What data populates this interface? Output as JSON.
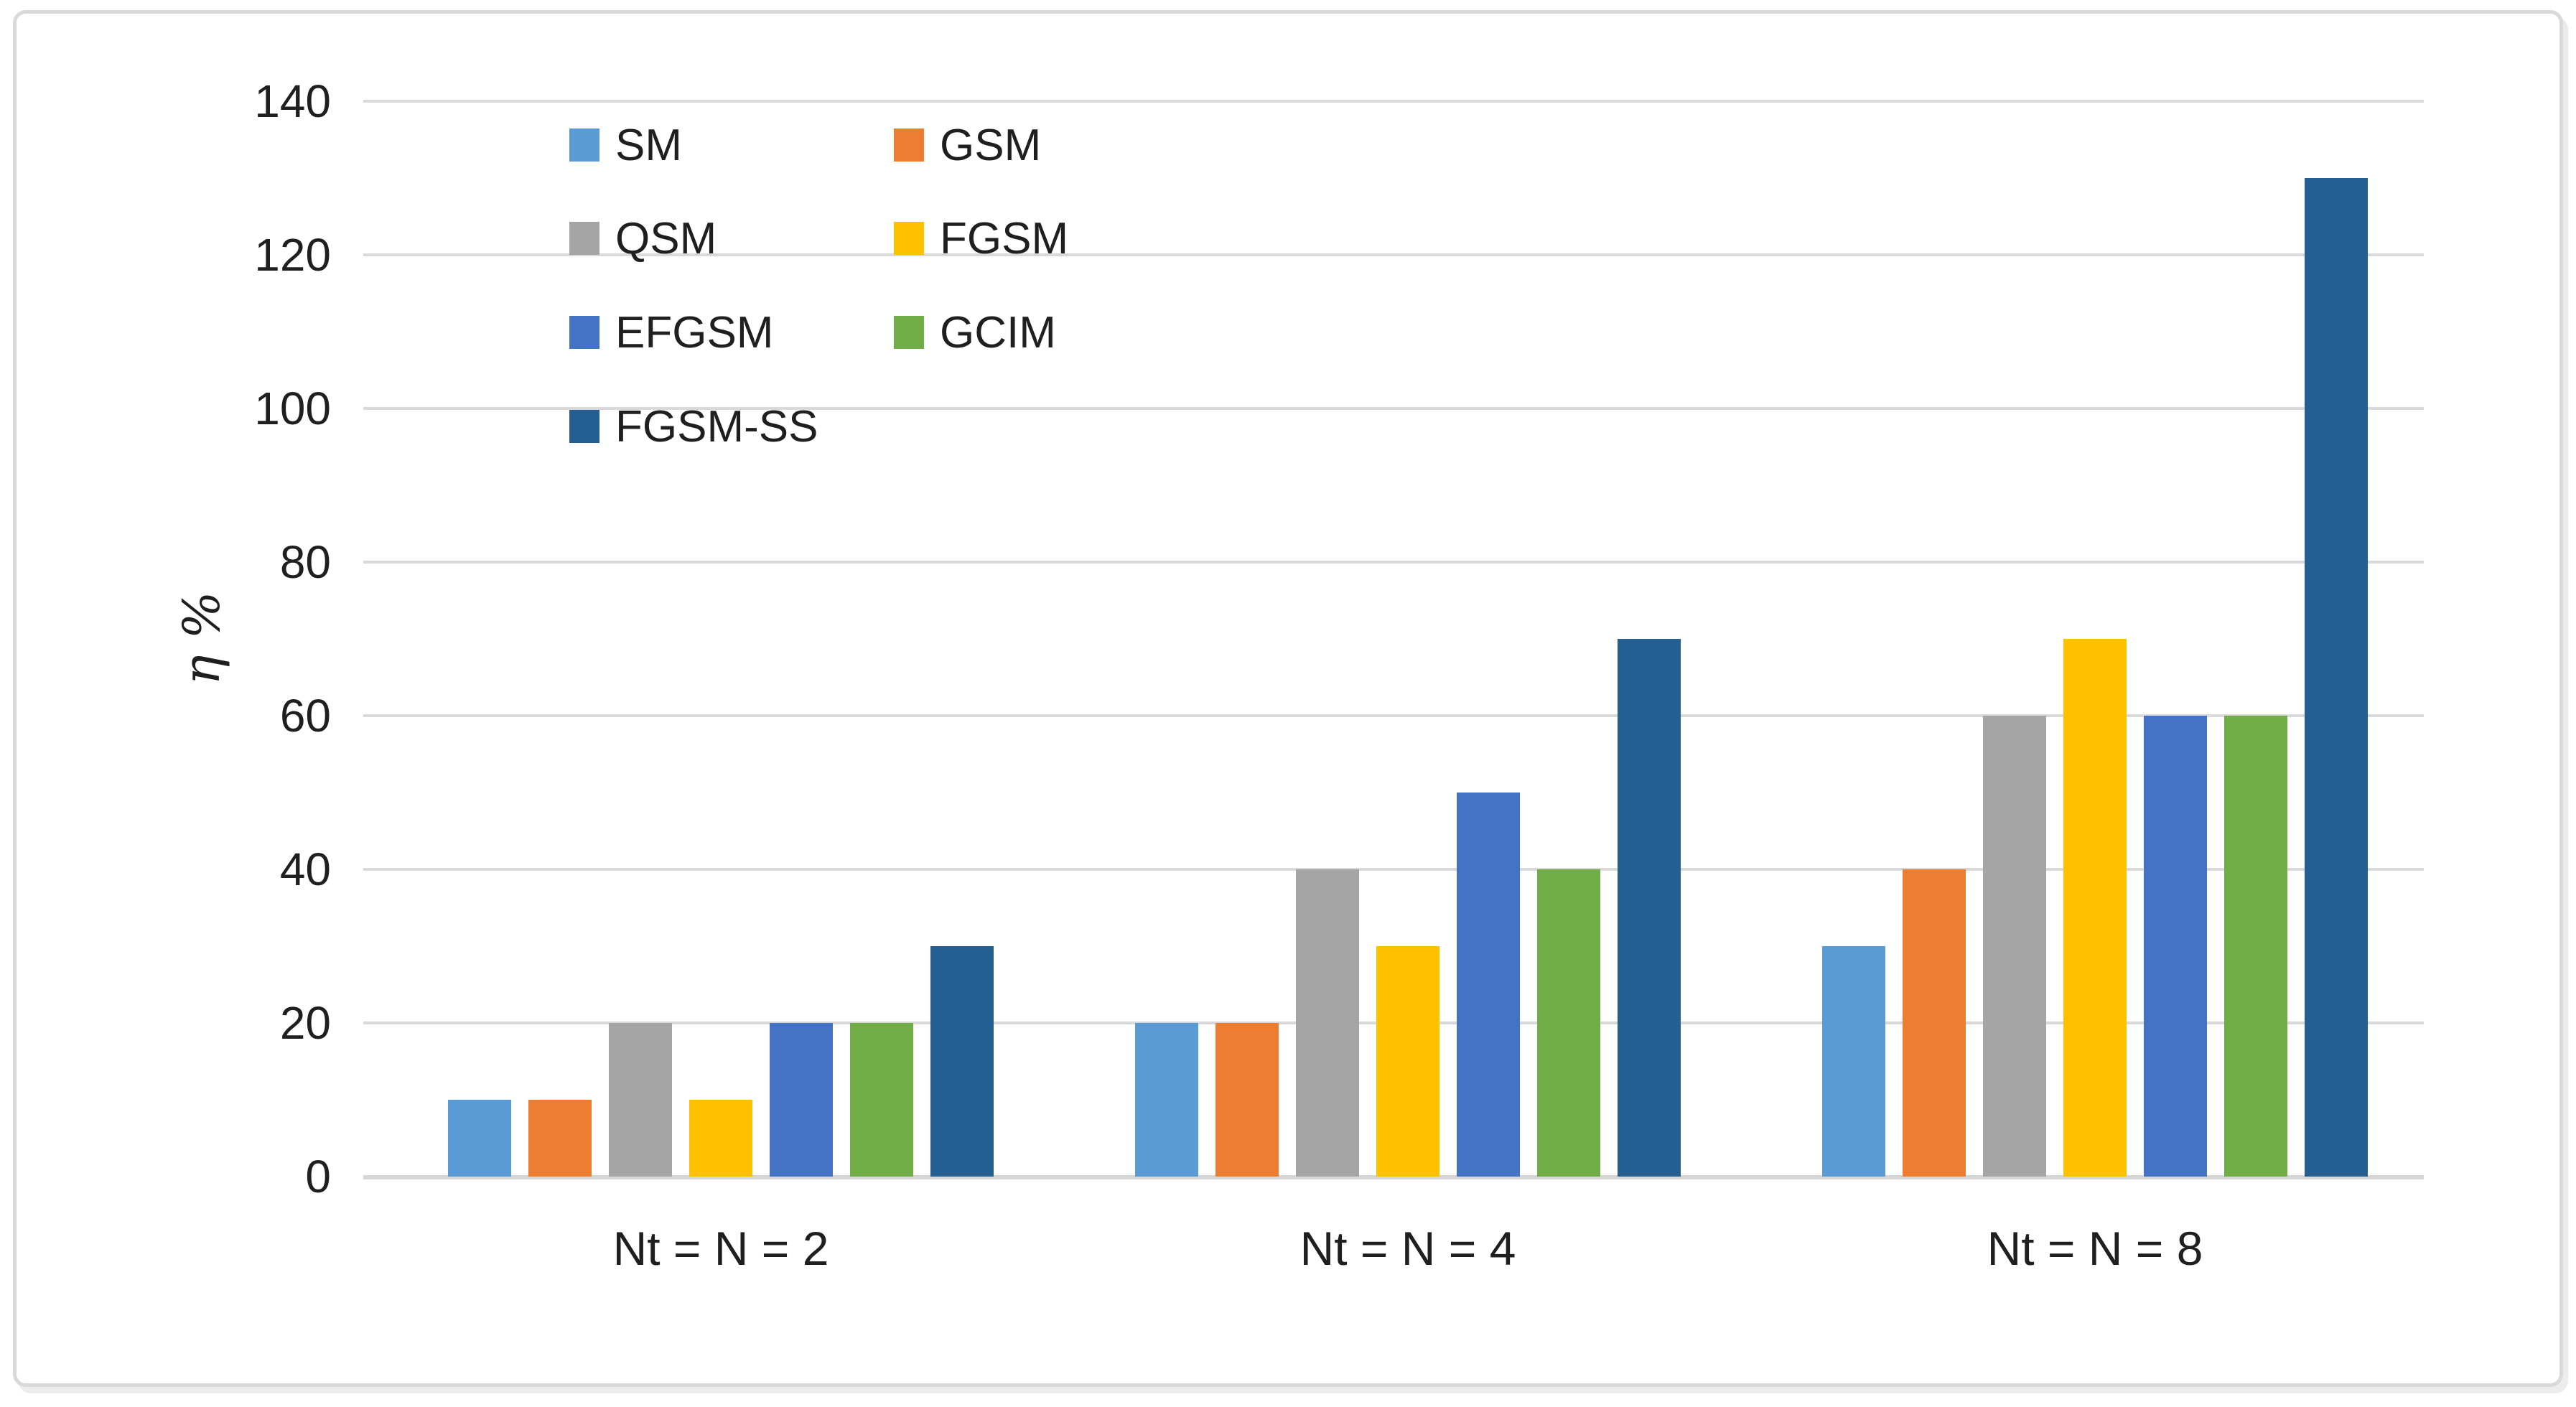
{
  "chart_data": {
    "type": "bar",
    "title": "",
    "categories": [
      "Nt = N = 2",
      "Nt = N = 4",
      "Nt = N = 8"
    ],
    "series": [
      {
        "name": "SM",
        "color": "#5B9BD5",
        "values": [
          10,
          20,
          30
        ]
      },
      {
        "name": "GSM",
        "color": "#ED7D31",
        "values": [
          10,
          20,
          40
        ]
      },
      {
        "name": "QSM",
        "color": "#A5A5A5",
        "values": [
          20,
          40,
          60
        ]
      },
      {
        "name": "FGSM",
        "color": "#FFC000",
        "values": [
          10,
          30,
          70
        ]
      },
      {
        "name": "EFGSM",
        "color": "#4472C4",
        "values": [
          20,
          50,
          60
        ]
      },
      {
        "name": "GCIM",
        "color": "#70AD47",
        "values": [
          20,
          40,
          60
        ]
      },
      {
        "name": "FGSM-SS",
        "color": "#255E91",
        "values": [
          30,
          70,
          130
        ]
      }
    ],
    "xlabel": "",
    "ylabel": "η %",
    "ylim": [
      0,
      140
    ],
    "yticks": [
      0,
      20,
      40,
      60,
      80,
      100,
      120,
      140
    ],
    "grid": true,
    "grid_color": "#D9D9D9",
    "axis_color": "#D5D5D5",
    "text_color": "#1F1F1F",
    "legend_position": "top-left-inside",
    "legend_columns": 2
  }
}
